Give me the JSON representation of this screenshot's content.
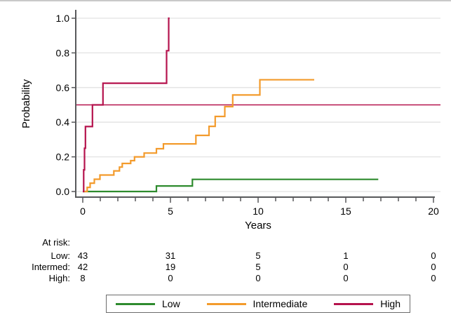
{
  "window": {
    "top_edge_color": "#c9c9c9"
  },
  "colors": {
    "axis": "#58595b",
    "grid": "#e2e2e2",
    "text": "#000000",
    "legend_border": "#6b6b6b"
  },
  "chart_data": {
    "type": "line",
    "subtype": "kaplan-meier-step-curves",
    "title": "",
    "xlabel": "Years",
    "ylabel": "Probability",
    "xlim": [
      -0.4,
      20.4
    ],
    "ylim": [
      0.0,
      1.0
    ],
    "grid": "horizontal-y-only",
    "legend_position": "bottom-center-boxed",
    "xticks_major": [
      {
        "value": 0,
        "label": "0"
      },
      {
        "value": 5,
        "label": "5"
      },
      {
        "value": 10,
        "label": "10"
      },
      {
        "value": 15,
        "label": "15"
      },
      {
        "value": 20,
        "label": "20"
      }
    ],
    "xticks_minor": [
      1,
      2,
      3,
      4,
      6,
      7,
      8,
      9,
      11,
      12,
      13,
      14,
      16,
      17,
      18,
      19
    ],
    "yticks": [
      {
        "value": 0.0,
        "label": "0.0"
      },
      {
        "value": 0.2,
        "label": "0.2"
      },
      {
        "value": 0.4,
        "label": "0.4"
      },
      {
        "value": 0.6,
        "label": "0.6"
      },
      {
        "value": 0.8,
        "label": "0.8"
      },
      {
        "value": 1.0,
        "label": "1.0"
      }
    ],
    "reference_line": {
      "y": 0.5,
      "color": "#b5134d"
    },
    "series": [
      {
        "name": "Low",
        "color": "#2e8b2e",
        "step": true,
        "points": [
          [
            0,
            0
          ],
          [
            4.2,
            0.032
          ],
          [
            6.25,
            0.07
          ],
          [
            16.85,
            0.07
          ]
        ]
      },
      {
        "name": "Intermediate",
        "color": "#f39b2c",
        "step": true,
        "points": [
          [
            0,
            0
          ],
          [
            0.25,
            0.024
          ],
          [
            0.42,
            0.048
          ],
          [
            0.66,
            0.071
          ],
          [
            0.98,
            0.095
          ],
          [
            1.77,
            0.119
          ],
          [
            2.09,
            0.141
          ],
          [
            2.25,
            0.162
          ],
          [
            2.73,
            0.178
          ],
          [
            2.95,
            0.2
          ],
          [
            3.5,
            0.222
          ],
          [
            4.2,
            0.247
          ],
          [
            4.6,
            0.275
          ],
          [
            6.45,
            0.324
          ],
          [
            7.2,
            0.376
          ],
          [
            7.55,
            0.433
          ],
          [
            8.1,
            0.49
          ],
          [
            8.55,
            0.557
          ],
          [
            10.1,
            0.645
          ],
          [
            13.2,
            0.645
          ]
        ]
      },
      {
        "name": "High",
        "color": "#b5134d",
        "step": true,
        "points": [
          [
            0,
            0
          ],
          [
            0.05,
            0.125
          ],
          [
            0.1,
            0.25
          ],
          [
            0.15,
            0.375
          ],
          [
            0.55,
            0.5
          ],
          [
            1.15,
            0.625
          ],
          [
            4.78,
            0.8125
          ],
          [
            4.9,
            1.0
          ],
          [
            4.95,
            1.0
          ]
        ]
      }
    ]
  },
  "at_risk": {
    "header": "At risk:",
    "time_points": [
      0,
      5,
      10,
      15,
      20
    ],
    "rows": [
      {
        "label": "Low:",
        "values": [
          "43",
          "31",
          "5",
          "1",
          "0"
        ]
      },
      {
        "label": "Intermed:",
        "values": [
          "42",
          "19",
          "5",
          "0",
          "0"
        ]
      },
      {
        "label": "High:",
        "values": [
          "8",
          "0",
          "0",
          "0",
          "0"
        ]
      }
    ]
  },
  "legend": {
    "items": [
      {
        "label": "Low",
        "color": "#2e8b2e"
      },
      {
        "label": "Intermediate",
        "color": "#f39b2c"
      },
      {
        "label": "High",
        "color": "#b5134d"
      }
    ]
  }
}
